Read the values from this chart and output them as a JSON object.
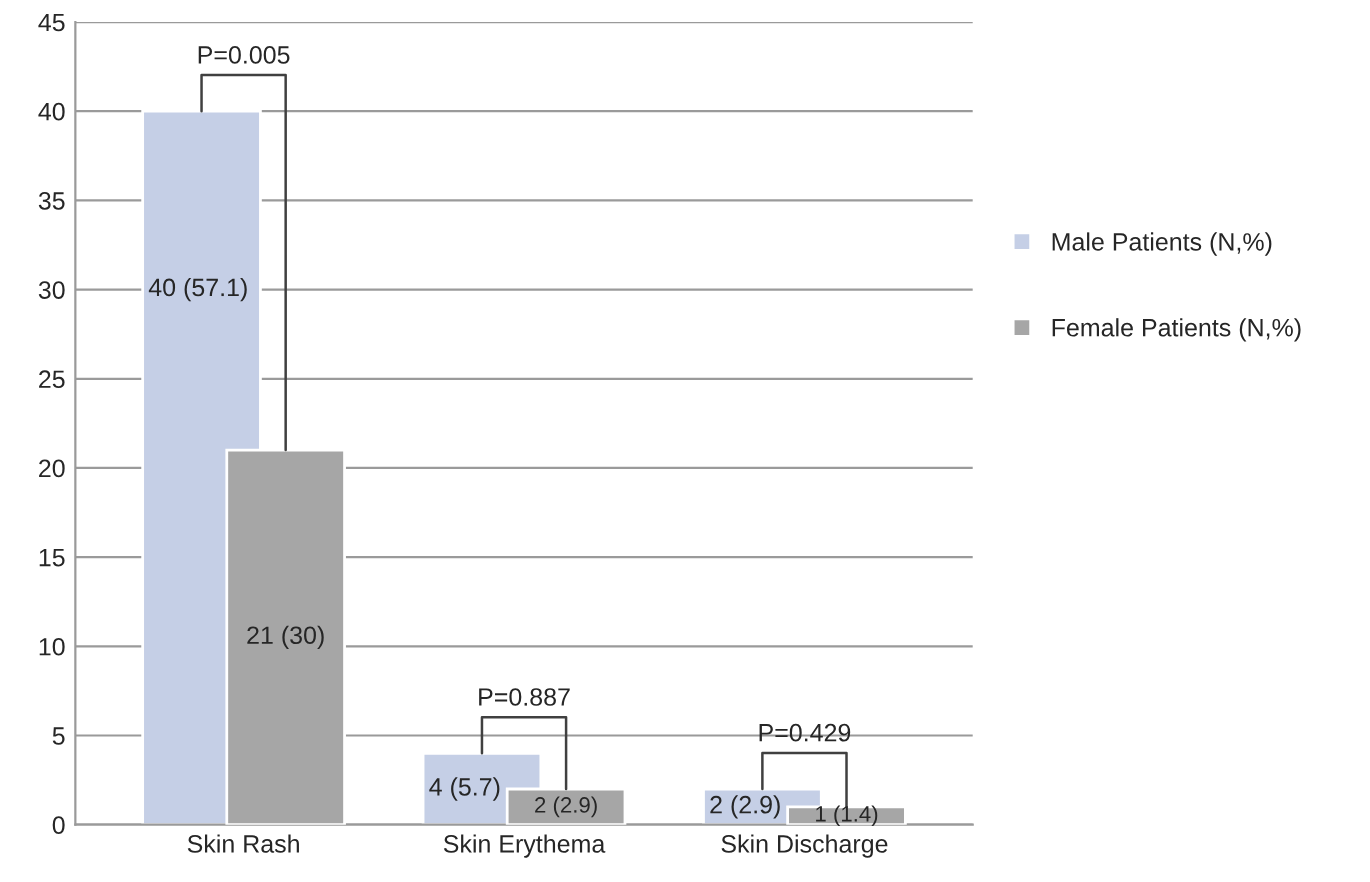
{
  "chart_data": {
    "type": "bar",
    "categories": [
      "Skin Rash",
      "Skin Erythema",
      "Skin Discharge"
    ],
    "series": [
      {
        "name": "Male Patients (N,%)",
        "color": "#c5cfe6",
        "values": [
          40,
          4,
          2
        ],
        "value_labels": [
          "40 (57.1)",
          "4 (5.7)",
          "2 (2.9)"
        ]
      },
      {
        "name": "Female Patients (N,%)",
        "color": "#a6a6a6",
        "values": [
          21,
          2,
          1
        ],
        "value_labels": [
          "21 (30)",
          "2 (2.9)",
          "1 (1.4)"
        ]
      }
    ],
    "ylim": [
      0,
      45
    ],
    "yticks": [
      0,
      5,
      10,
      15,
      20,
      25,
      30,
      35,
      40,
      45
    ],
    "grid": "y",
    "legend": "right",
    "annotations": [
      "P=0.005",
      "P=0.887",
      "P=0.429"
    ]
  }
}
